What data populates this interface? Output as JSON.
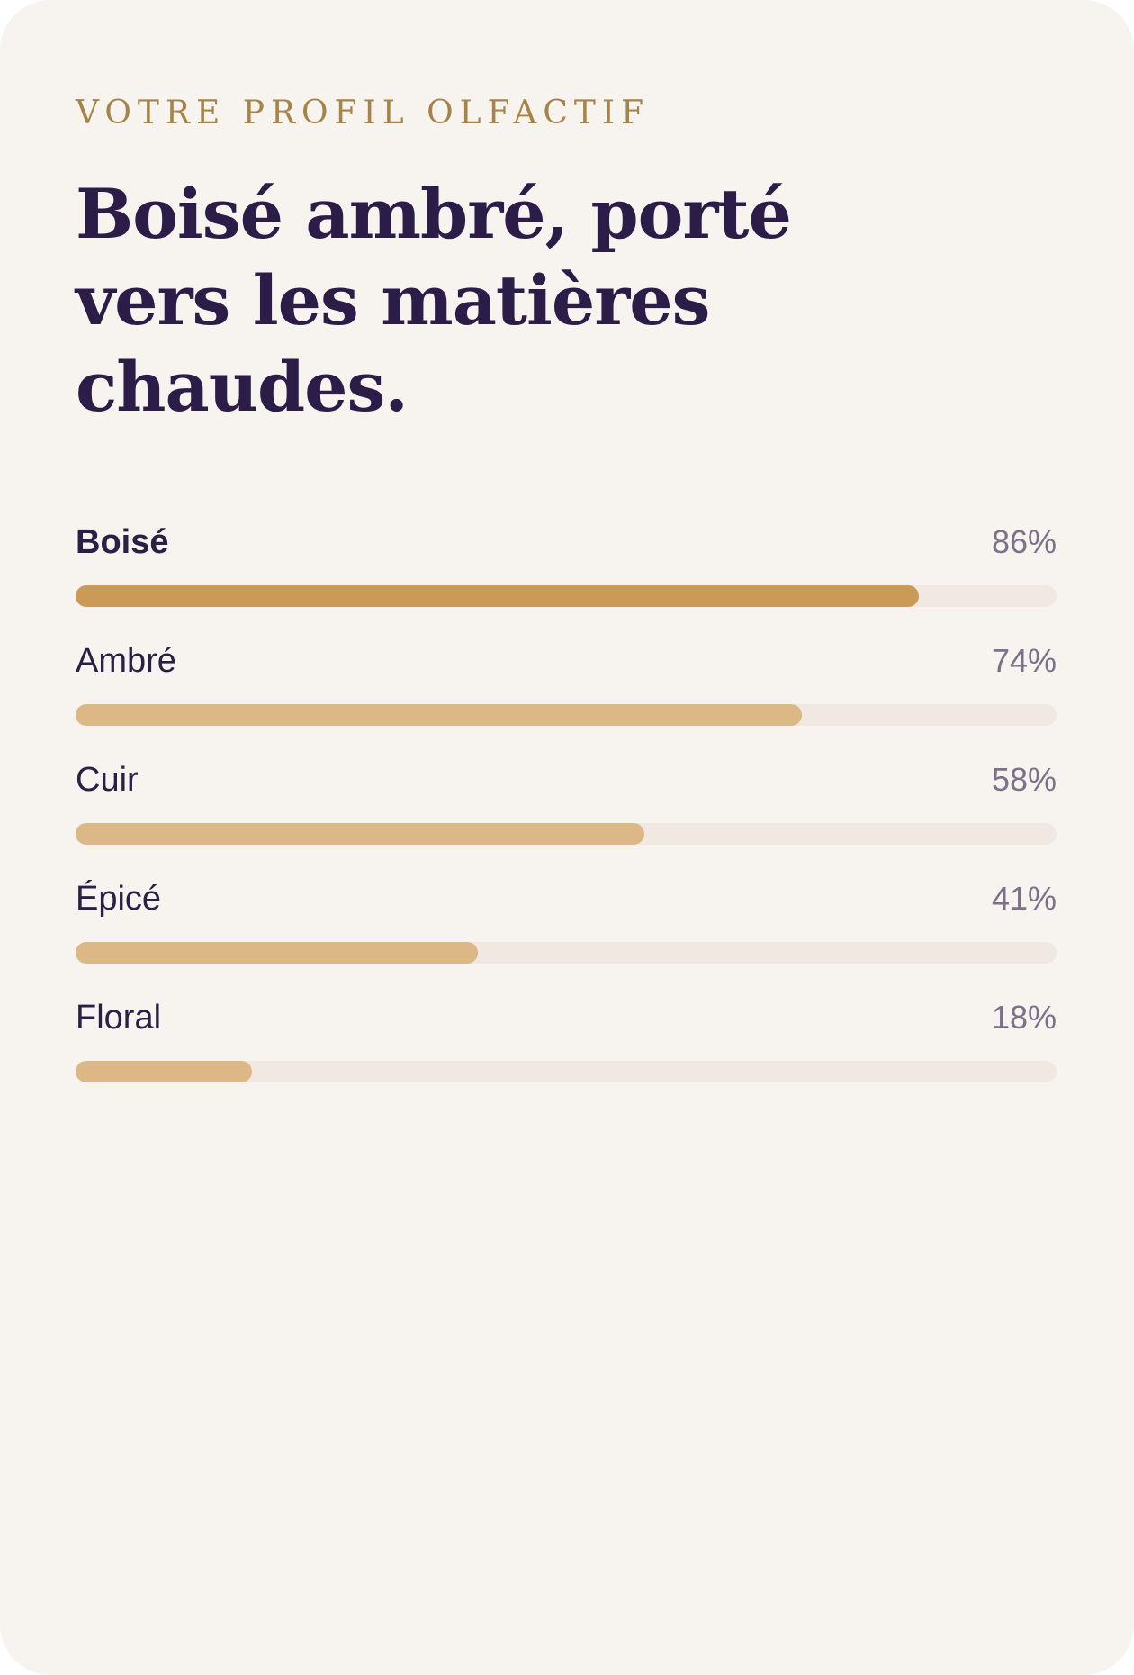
{
  "profile": {
    "eyebrow": "VOTRE PROFIL OLFACTIF",
    "headline": "Boisé ambré, porté vers les matières chaudes."
  },
  "notes": [
    {
      "label": "Boisé",
      "percent_label": "86%",
      "value": 86
    },
    {
      "label": "Ambré",
      "percent_label": "74%",
      "value": 74
    },
    {
      "label": "Cuir",
      "percent_label": "58%",
      "value": 58
    },
    {
      "label": "Épicé",
      "percent_label": "41%",
      "value": 41
    },
    {
      "label": "Floral",
      "percent_label": "18%",
      "value": 18
    }
  ],
  "colors": {
    "card_background": "#f7f3ee",
    "eyebrow": "#a68448",
    "headline": "#2c1c48",
    "dominant_bar": "#cc9a57",
    "secondary_bar": "#dbb886",
    "track": "#f0e8e1"
  }
}
